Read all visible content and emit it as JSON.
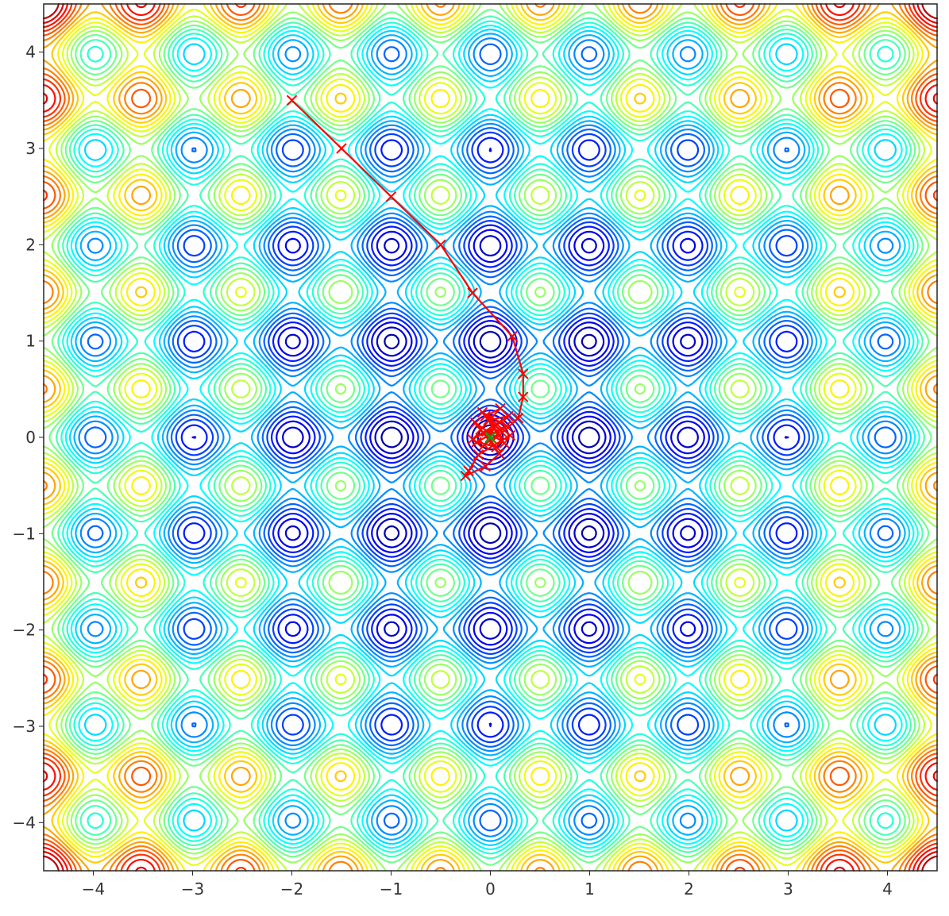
{
  "chart_data": {
    "type": "contour",
    "title": "",
    "xlabel": "",
    "ylabel": "",
    "xlim": [
      -4.5,
      4.5
    ],
    "ylim": [
      -4.5,
      4.5
    ],
    "aspect": "equal",
    "grid": false,
    "xticks": [
      -4,
      -3,
      -2,
      -1,
      0,
      1,
      2,
      3,
      4
    ],
    "yticks": [
      -4,
      -3,
      -2,
      -1,
      0,
      1,
      2,
      3,
      4
    ],
    "xtick_labels": [
      "−4",
      "−3",
      "−2",
      "−1",
      "0",
      "1",
      "2",
      "3",
      "4"
    ],
    "ytick_labels": [
      "−4",
      "−3",
      "−2",
      "−1",
      "0",
      "1",
      "2",
      "3",
      "4"
    ],
    "surface": {
      "function": "rastrigin",
      "A": 10,
      "expression": "20 + x^2 + y^2 - 10*cos(2*pi*x) - 10*cos(2*pi*y)",
      "colormap": "jet",
      "line_levels": [
        3,
        6,
        9,
        12,
        15,
        18,
        21,
        24,
        27,
        30,
        33,
        36,
        39,
        42,
        45,
        48,
        51,
        54,
        57,
        60,
        63,
        66,
        69,
        72,
        75
      ],
      "level_range": [
        0,
        80
      ]
    },
    "series": [
      {
        "kind": "trajectory",
        "color": "#ff0000",
        "marker": "x",
        "points": [
          [
            -2.0,
            3.5
          ],
          [
            -1.5,
            3.0
          ],
          [
            -1.0,
            2.5
          ],
          [
            -0.5,
            2.0
          ],
          [
            -0.18,
            1.5
          ],
          [
            0.22,
            1.05
          ],
          [
            0.33,
            0.66
          ],
          [
            0.33,
            0.42
          ],
          [
            0.28,
            0.2
          ],
          [
            0.12,
            0.05
          ],
          [
            -0.05,
            0.22
          ],
          [
            0.1,
            0.3
          ],
          [
            -0.1,
            0.08
          ],
          [
            0.06,
            -0.1
          ],
          [
            -0.14,
            -0.05
          ],
          [
            0.16,
            0.12
          ],
          [
            -0.08,
            0.26
          ],
          [
            0.2,
            0.02
          ],
          [
            -0.12,
            -0.18
          ],
          [
            -0.22,
            -0.35
          ],
          [
            -0.25,
            -0.4
          ],
          [
            -0.05,
            -0.3
          ],
          [
            0.09,
            -0.17
          ],
          [
            -0.15,
            0.15
          ],
          [
            0.14,
            -0.06
          ],
          [
            -0.02,
            0.18
          ],
          [
            0.18,
            0.22
          ],
          [
            -0.18,
            -0.02
          ],
          [
            0.04,
            0.1
          ],
          [
            -0.06,
            -0.08
          ],
          [
            0.08,
            0.04
          ],
          [
            -0.04,
            0.06
          ],
          [
            0.03,
            -0.03
          ],
          [
            0.0,
            0.0
          ]
        ]
      }
    ],
    "optimum": {
      "x": 0,
      "y": 0,
      "marker": "x",
      "color": "#1a9a1a"
    }
  }
}
